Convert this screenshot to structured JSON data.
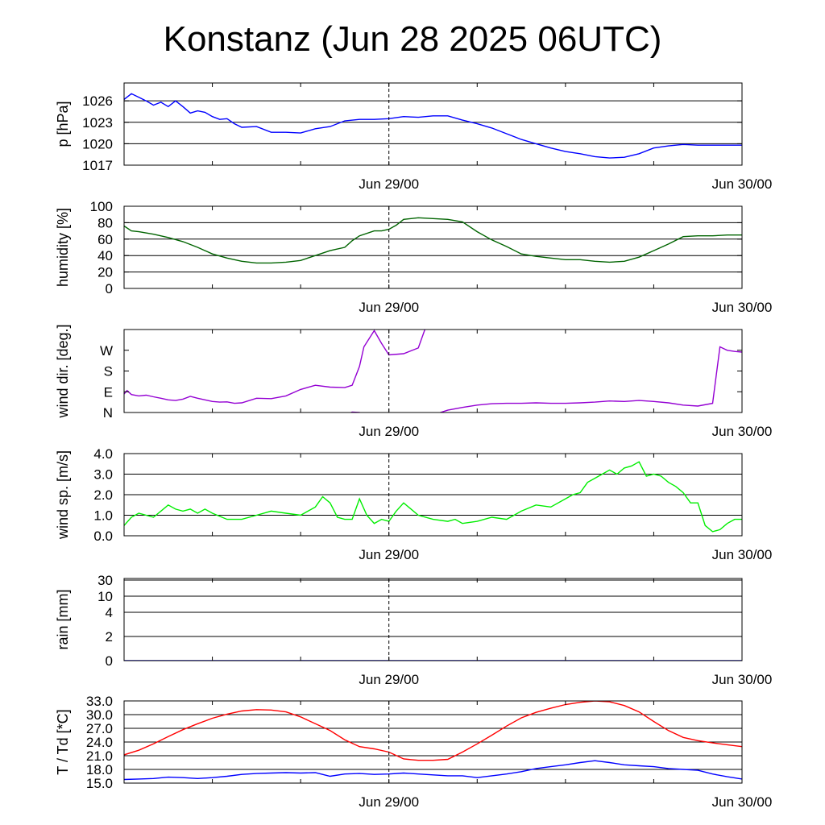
{
  "title": "Konstanz (Jun 28 2025 06UTC)",
  "chart_data": [
    {
      "type": "line",
      "ylabel": "p [hPa]",
      "ylim": [
        1017,
        1028.5
      ],
      "yticks": [
        1017,
        1020,
        1023,
        1026
      ],
      "ytick_labels": [
        "1017",
        "1020",
        "1023",
        "1026"
      ],
      "grid": "horizontal",
      "xlim": [
        0,
        42
      ],
      "xtick_labels": [
        {
          "x": 18,
          "label": "Jun 29/00"
        },
        {
          "x": 42,
          "label": "Jun 30/00"
        }
      ],
      "marker_line_x": 18,
      "series": [
        {
          "color": "#0000ff",
          "x": [
            0,
            0.5,
            1,
            1.5,
            2,
            2.5,
            3,
            3.5,
            4,
            4.5,
            5,
            5.5,
            6,
            6.5,
            7,
            7.5,
            8,
            9,
            10,
            11,
            12,
            13,
            14,
            15,
            16,
            17,
            18,
            19,
            20,
            21,
            22,
            23,
            24,
            25,
            26,
            27,
            28,
            29,
            30,
            31,
            32,
            33,
            34,
            35,
            36,
            37,
            38,
            39,
            40,
            41,
            42
          ],
          "y": [
            1026.2,
            1027.0,
            1026.5,
            1026.0,
            1025.4,
            1025.8,
            1025.2,
            1026.0,
            1025.2,
            1024.3,
            1024.6,
            1024.4,
            1023.8,
            1023.4,
            1023.5,
            1022.8,
            1022.3,
            1022.4,
            1021.6,
            1021.6,
            1021.5,
            1022.1,
            1022.4,
            1023.2,
            1023.4,
            1023.4,
            1023.5,
            1023.8,
            1023.7,
            1023.9,
            1023.9,
            1023.3,
            1022.8,
            1022.2,
            1021.4,
            1020.6,
            1020.0,
            1019.4,
            1018.9,
            1018.6,
            1018.2,
            1018.0,
            1018.1,
            1018.6,
            1019.4,
            1019.7,
            1019.9,
            1019.8,
            1019.8,
            1019.8,
            1019.8
          ]
        }
      ]
    },
    {
      "type": "line",
      "ylabel": "humidity [%]",
      "ylim": [
        0,
        100
      ],
      "yticks": [
        0,
        20,
        40,
        60,
        80,
        100
      ],
      "ytick_labels": [
        "0",
        "20",
        "40",
        "60",
        "80",
        "100"
      ],
      "grid": "horizontal",
      "xlim": [
        0,
        42
      ],
      "xtick_labels": [
        {
          "x": 18,
          "label": "Jun 29/00"
        },
        {
          "x": 42,
          "label": "Jun 30/00"
        }
      ],
      "marker_line_x": 18,
      "series": [
        {
          "color": "#006400",
          "x": [
            0,
            0.5,
            1,
            2,
            3,
            4,
            5,
            6,
            7,
            8,
            9,
            10,
            11,
            12,
            13,
            14,
            15,
            15.5,
            16,
            17,
            17.5,
            18,
            18.5,
            19,
            20,
            21,
            22,
            23,
            24,
            25,
            26,
            27,
            28,
            29,
            30,
            31,
            32,
            33,
            34,
            35,
            36,
            37,
            38,
            39,
            40,
            41,
            42
          ],
          "y": [
            76,
            70,
            69,
            66,
            62,
            57,
            50,
            42,
            37,
            33,
            31,
            31,
            32,
            34,
            40,
            46,
            50,
            58,
            64,
            70,
            70,
            72,
            77,
            84,
            86,
            85,
            84,
            81,
            69,
            59,
            51,
            42,
            39,
            37,
            35,
            35,
            33,
            32,
            33,
            38,
            46,
            54,
            63,
            64,
            64,
            65,
            65
          ]
        }
      ]
    },
    {
      "type": "line",
      "ylabel": "wind dir. [deg.]",
      "ylim": [
        0,
        360
      ],
      "yticks": [
        0,
        90,
        180,
        270
      ],
      "ytick_labels": [
        "N",
        "E",
        "S",
        "W"
      ],
      "grid": "none",
      "xlim": [
        0,
        42
      ],
      "xtick_labels": [
        {
          "x": 18,
          "label": "Jun 29/00"
        },
        {
          "x": 42,
          "label": "Jun 30/00"
        }
      ],
      "marker_line_x": 18,
      "series": [
        {
          "color": "#9400d3",
          "x": [
            0,
            0.2,
            0.5,
            1,
            1.5,
            2,
            2.5,
            3,
            3.5,
            4,
            4.5,
            5,
            5.5,
            6,
            6.5,
            7,
            7.5,
            8,
            9,
            10,
            11,
            12,
            13,
            14,
            15,
            15.5,
            16,
            16.3,
            17,
            17.5,
            18,
            19,
            20,
            20.5
          ],
          "y": [
            80,
            95,
            78,
            72,
            75,
            68,
            62,
            55,
            52,
            58,
            70,
            62,
            55,
            48,
            45,
            46,
            40,
            42,
            62,
            60,
            72,
            100,
            118,
            110,
            108,
            118,
            200,
            285,
            355,
            300,
            250,
            255,
            280,
            370
          ]
        },
        {
          "color": "#9400d3",
          "x": [
            15,
            15.5,
            16,
            16.5,
            17,
            17.5,
            18,
            18.5,
            19,
            20,
            21,
            22,
            23,
            24,
            25,
            26,
            27,
            28,
            29,
            30,
            31,
            32,
            33,
            34,
            35,
            36,
            37,
            38,
            39,
            40,
            40.5,
            41,
            41.5,
            42
          ],
          "y": [
            -12,
            2,
            0,
            -10,
            -20,
            -25,
            -28,
            -20,
            -18,
            -25,
            -10,
            10,
            22,
            32,
            38,
            40,
            40,
            42,
            40,
            40,
            42,
            45,
            50,
            48,
            52,
            48,
            42,
            32,
            28,
            40,
            285,
            270,
            265,
            262
          ]
        }
      ]
    },
    {
      "type": "line",
      "ylabel": "wind sp. [m/s]",
      "ylim": [
        0,
        4.0
      ],
      "yticks": [
        0.0,
        1.0,
        2.0,
        3.0,
        4.0
      ],
      "ytick_labels": [
        "0.0",
        "1.0",
        "2.0",
        "3.0",
        "4.0"
      ],
      "grid": "horizontal",
      "xlim": [
        0,
        42
      ],
      "xtick_labels": [
        {
          "x": 18,
          "label": "Jun 29/00"
        },
        {
          "x": 42,
          "label": "Jun 30/00"
        }
      ],
      "marker_line_x": 18,
      "series": [
        {
          "color": "#00ee00",
          "x": [
            0,
            0.5,
            1,
            1.5,
            2,
            2.5,
            3,
            3.5,
            4,
            4.5,
            5,
            5.5,
            6,
            7,
            8,
            9,
            10,
            11,
            12,
            12.5,
            13,
            13.5,
            14,
            14.5,
            15,
            15.5,
            16,
            16.5,
            17,
            17.5,
            18,
            18.5,
            19,
            20,
            21,
            22,
            22.5,
            23,
            24,
            25,
            26,
            27,
            28,
            29,
            30,
            30.5,
            31,
            31.5,
            32,
            32.5,
            33,
            33.5,
            34,
            34.5,
            35,
            35.5,
            36,
            36.5,
            37,
            37.5,
            38,
            38.5,
            39,
            39.5,
            40,
            40.5,
            41,
            41.5,
            42
          ],
          "y": [
            0.5,
            0.9,
            1.1,
            1.0,
            0.9,
            1.2,
            1.5,
            1.3,
            1.2,
            1.3,
            1.1,
            1.3,
            1.1,
            0.8,
            0.8,
            1.0,
            1.2,
            1.1,
            1.0,
            1.2,
            1.4,
            1.9,
            1.6,
            0.9,
            0.8,
            0.8,
            1.8,
            1.0,
            0.6,
            0.8,
            0.7,
            1.2,
            1.6,
            1.0,
            0.8,
            0.7,
            0.8,
            0.6,
            0.7,
            0.9,
            0.8,
            1.2,
            1.5,
            1.4,
            1.8,
            2.0,
            2.1,
            2.6,
            2.8,
            3.0,
            3.2,
            3.0,
            3.3,
            3.4,
            3.6,
            2.9,
            3.0,
            2.9,
            2.6,
            2.4,
            2.1,
            1.6,
            1.6,
            0.5,
            0.2,
            0.3,
            0.6,
            0.8,
            0.8
          ]
        }
      ]
    },
    {
      "type": "line",
      "ylabel": "rain [mm]",
      "yscale": "custom",
      "yticks": [
        0,
        2,
        4,
        10,
        30
      ],
      "ytick_labels": [
        "0",
        "2",
        "4",
        "10",
        "30"
      ],
      "grid": "horizontal",
      "xlim": [
        0,
        42
      ],
      "xtick_labels": [
        {
          "x": 18,
          "label": "Jun 29/00"
        },
        {
          "x": 42,
          "label": "Jun 30/00"
        }
      ],
      "marker_line_x": 18,
      "series": [
        {
          "color": "#0000ff",
          "x": [
            0,
            42
          ],
          "y": [
            0,
            0
          ]
        }
      ]
    },
    {
      "type": "line",
      "ylabel": "T / Td [*C]",
      "ylim": [
        15,
        33
      ],
      "yticks": [
        15,
        18,
        21,
        24,
        27,
        30,
        33
      ],
      "ytick_labels": [
        "15.0",
        "18.0",
        "21.0",
        "24.0",
        "27.0",
        "30.0",
        "33.0"
      ],
      "grid": "horizontal",
      "xlim": [
        0,
        42
      ],
      "xtick_labels": [
        {
          "x": 18,
          "label": "Jun 29/00"
        },
        {
          "x": 42,
          "label": "Jun 30/00"
        }
      ],
      "marker_line_x": 18,
      "series": [
        {
          "color": "#ff0000",
          "x": [
            0,
            1,
            2,
            3,
            4,
            5,
            6,
            7,
            8,
            9,
            10,
            11,
            12,
            13,
            14,
            15,
            16,
            17,
            18,
            19,
            20,
            21,
            22,
            23,
            24,
            25,
            26,
            27,
            28,
            29,
            30,
            31,
            32,
            33,
            34,
            35,
            36,
            37,
            38,
            39,
            40,
            41,
            42
          ],
          "y": [
            21.2,
            22.2,
            23.6,
            25.2,
            26.7,
            28.0,
            29.2,
            30.1,
            30.8,
            31.1,
            31.0,
            30.6,
            29.5,
            28.0,
            26.5,
            24.5,
            23.0,
            22.5,
            21.8,
            20.3,
            20.0,
            20.0,
            20.2,
            21.8,
            23.6,
            25.5,
            27.5,
            29.3,
            30.5,
            31.4,
            32.2,
            32.7,
            33.0,
            32.8,
            32.0,
            30.6,
            28.5,
            26.5,
            25.0,
            24.3,
            23.8,
            23.4,
            23.0
          ]
        },
        {
          "color": "#0000ff",
          "x": [
            0,
            1,
            2,
            3,
            4,
            5,
            6,
            7,
            8,
            9,
            10,
            11,
            12,
            13,
            14,
            15,
            16,
            17,
            18,
            19,
            20,
            21,
            22,
            23,
            24,
            25,
            26,
            27,
            28,
            29,
            30,
            31,
            32,
            33,
            34,
            35,
            36,
            37,
            38,
            39,
            40,
            41,
            42
          ],
          "y": [
            15.8,
            15.9,
            16.0,
            16.3,
            16.2,
            16.0,
            16.2,
            16.5,
            16.9,
            17.1,
            17.2,
            17.3,
            17.2,
            17.3,
            16.5,
            17.0,
            17.1,
            16.9,
            17.0,
            17.2,
            17.0,
            16.8,
            16.6,
            16.6,
            16.2,
            16.6,
            17.0,
            17.5,
            18.2,
            18.6,
            19.0,
            19.5,
            19.9,
            19.5,
            19.0,
            18.8,
            18.6,
            18.2,
            18.0,
            17.8,
            17.0,
            16.4,
            15.9
          ]
        }
      ]
    }
  ]
}
